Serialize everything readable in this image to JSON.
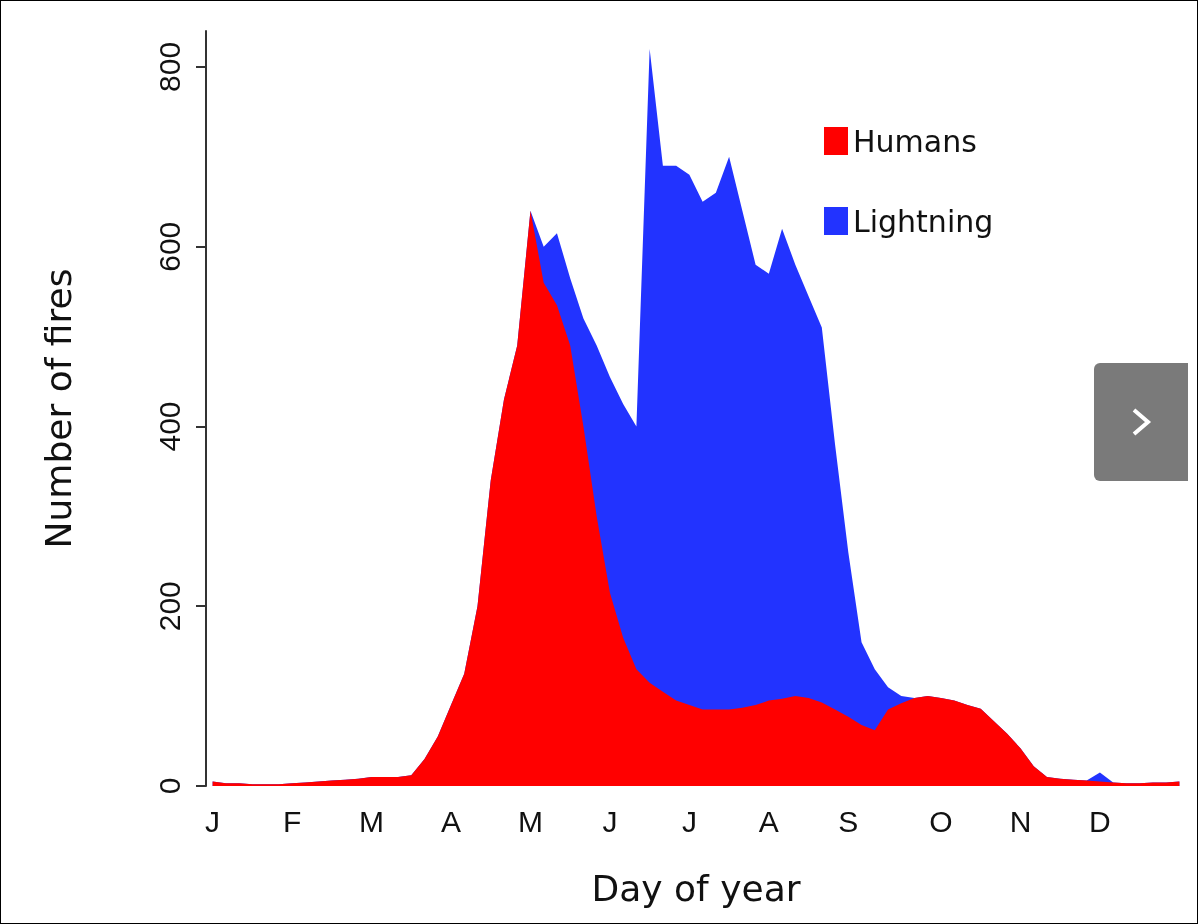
{
  "chart_data": {
    "type": "area",
    "xlabel": "Day of year",
    "ylabel": "Number of fires",
    "categories": [
      "J",
      null,
      null,
      null,
      null,
      null,
      "F",
      null,
      null,
      null,
      null,
      null,
      "M",
      null,
      null,
      null,
      null,
      null,
      "A",
      null,
      null,
      null,
      null,
      null,
      "M",
      null,
      null,
      null,
      null,
      null,
      "J",
      null,
      null,
      null,
      null,
      null,
      "J",
      null,
      null,
      null,
      null,
      null,
      "A",
      null,
      null,
      null,
      null,
      null,
      "S",
      null,
      null,
      null,
      null,
      null,
      null,
      "O",
      null,
      null,
      null,
      null,
      null,
      "N",
      null,
      null,
      null,
      null,
      null,
      "D",
      null,
      null,
      null,
      null,
      null,
      null
    ],
    "ylim": [
      0,
      840
    ],
    "yticks": [
      0,
      200,
      400,
      600,
      800
    ],
    "legend": "top right",
    "grid": false,
    "series": [
      {
        "name": "Humans",
        "color": "#ff0000",
        "values": [
          5,
          3,
          3,
          2,
          2,
          2,
          3,
          4,
          5,
          6,
          7,
          8,
          10,
          10,
          10,
          12,
          30,
          55,
          90,
          125,
          200,
          340,
          430,
          490,
          640,
          560,
          535,
          490,
          400,
          300,
          215,
          165,
          130,
          115,
          105,
          95,
          90,
          85,
          85,
          85,
          87,
          90,
          95,
          97,
          100,
          98,
          93,
          85,
          77,
          68,
          62,
          85,
          92,
          98,
          100,
          98,
          95,
          90,
          86,
          72,
          58,
          42,
          22,
          10,
          8,
          7,
          6,
          5,
          4,
          3,
          3,
          4,
          4,
          5
        ]
      },
      {
        "name": "Lightning",
        "color": "#2233ff",
        "values": [
          5,
          3,
          3,
          2,
          2,
          2,
          3,
          4,
          5,
          6,
          7,
          8,
          10,
          10,
          10,
          12,
          30,
          55,
          90,
          125,
          200,
          340,
          430,
          490,
          640,
          600,
          615,
          565,
          520,
          490,
          455,
          425,
          400,
          820,
          690,
          690,
          680,
          650,
          660,
          700,
          640,
          580,
          570,
          620,
          580,
          545,
          510,
          380,
          260,
          160,
          130,
          110,
          100,
          98,
          100,
          98,
          95,
          90,
          86,
          72,
          58,
          42,
          22,
          10,
          8,
          7,
          6,
          15,
          4,
          3,
          3,
          4,
          4,
          5
        ]
      }
    ]
  }
}
